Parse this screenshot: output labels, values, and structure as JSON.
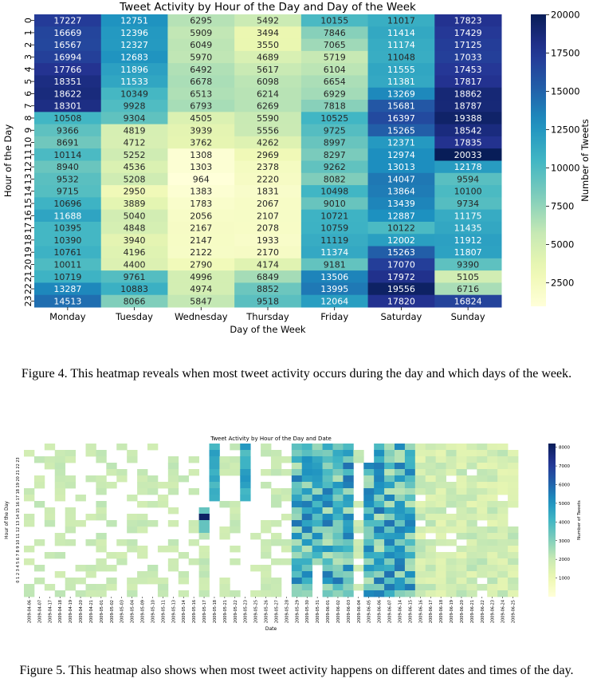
{
  "chart_data": [
    {
      "type": "heatmap",
      "title": "Tweet Activity by Hour of the Day and Day of the Week",
      "xlabel": "Day of the Week",
      "ylabel": "Hour of the Day",
      "colorbar_label": "Number of Tweets",
      "colormap": "YlGnBu",
      "colorbar_ticks": [
        2500,
        5000,
        7500,
        10000,
        12500,
        15000,
        17500,
        20000
      ],
      "vmin": 964,
      "vmax": 20033,
      "x": [
        "Monday",
        "Tuesday",
        "Wednesday",
        "Thursday",
        "Friday",
        "Saturday",
        "Sunday"
      ],
      "y": [
        "0",
        "1",
        "2",
        "3",
        "4",
        "5",
        "6",
        "7",
        "8",
        "9",
        "10",
        "11",
        "12",
        "13",
        "14",
        "15",
        "16",
        "17",
        "18",
        "19",
        "20",
        "21",
        "22",
        "23"
      ],
      "values": [
        [
          17227,
          12751,
          6295,
          5492,
          10155,
          11017,
          17823
        ],
        [
          16669,
          12396,
          5909,
          3494,
          7846,
          11414,
          17429
        ],
        [
          16567,
          12327,
          6049,
          3550,
          7065,
          11174,
          17125
        ],
        [
          16994,
          12683,
          5970,
          4689,
          5719,
          11048,
          17033
        ],
        [
          17766,
          11896,
          6492,
          5617,
          6104,
          11555,
          17453
        ],
        [
          18351,
          11533,
          6678,
          6098,
          6654,
          11381,
          17817
        ],
        [
          18622,
          10349,
          6513,
          6214,
          6929,
          13269,
          18862
        ],
        [
          18301,
          9928,
          6793,
          6269,
          7818,
          15681,
          18787
        ],
        [
          10508,
          9304,
          4505,
          5590,
          10525,
          16397,
          19388
        ],
        [
          9366,
          4819,
          3939,
          5556,
          9725,
          15265,
          18542
        ],
        [
          8691,
          4712,
          3762,
          4262,
          8997,
          12371,
          17835
        ],
        [
          10114,
          5252,
          1308,
          2969,
          8297,
          12974,
          20033
        ],
        [
          8940,
          4536,
          1303,
          2378,
          9262,
          13013,
          12178
        ],
        [
          9532,
          5208,
          964,
          2220,
          8082,
          14047,
          9594
        ],
        [
          9715,
          2950,
          1383,
          1831,
          10498,
          13864,
          10100
        ],
        [
          10696,
          3889,
          1783,
          2067,
          9010,
          13439,
          9734
        ],
        [
          11688,
          5040,
          2056,
          2107,
          10721,
          12887,
          11175
        ],
        [
          10395,
          4848,
          2167,
          2078,
          10759,
          10122,
          11435
        ],
        [
          10390,
          3940,
          2147,
          1933,
          11119,
          12002,
          11912
        ],
        [
          10761,
          4196,
          2122,
          2170,
          11374,
          15263,
          11807
        ],
        [
          10011,
          4400,
          2790,
          4174,
          9181,
          17070,
          9390
        ],
        [
          10719,
          9761,
          4996,
          6849,
          13506,
          17972,
          5105
        ],
        [
          13287,
          10883,
          4974,
          8852,
          13995,
          19556,
          6716
        ],
        [
          14513,
          8066,
          5847,
          9518,
          12064,
          17820,
          16824
        ]
      ]
    },
    {
      "type": "heatmap",
      "title": "Tweet Activity by Hour of the Day and Date",
      "xlabel": "Date",
      "ylabel": "Hour of the Day",
      "colorbar_label": "Number of Tweets",
      "colormap": "YlGnBu",
      "colorbar_ticks": [
        1000,
        2000,
        3000,
        4000,
        5000,
        6000,
        7000,
        8000
      ],
      "vmin": 0,
      "vmax": 8200,
      "x": [
        "2009-04-06",
        "2009-04-07",
        "2009-04-17",
        "2009-04-18",
        "2009-04-19",
        "2009-04-20",
        "2009-04-21",
        "2009-05-01",
        "2009-05-02",
        "2009-05-03",
        "2009-05-04",
        "2009-05-09",
        "2009-05-10",
        "2009-05-11",
        "2009-05-13",
        "2009-05-14",
        "2009-05-16",
        "2009-05-17",
        "2009-05-18",
        "2009-05-21",
        "2009-05-22",
        "2009-05-23",
        "2009-05-25",
        "2009-05-26",
        "2009-05-27",
        "2009-05-28",
        "2009-05-29",
        "2009-05-30",
        "2009-05-31",
        "2009-06-01",
        "2009-06-02",
        "2009-06-03",
        "2009-06-04",
        "2009-06-05",
        "2009-06-06",
        "2009-06-07",
        "2009-06-14",
        "2009-06-15",
        "2009-06-16",
        "2009-06-17",
        "2009-06-18",
        "2009-06-19",
        "2009-06-20",
        "2009-06-21",
        "2009-06-22",
        "2009-06-23",
        "2009-06-24",
        "2009-06-25"
      ],
      "y_tick_labels": "0 1 2 3 4 5 6 7 8 9 10 11 12 13 14 15 16 17 18 19 20 21 22 23",
      "rows": 24,
      "cells": "approximate; see script-generated pattern"
    }
  ],
  "figure4": {
    "caption": "Figure 4. This heatmap reveals when most tweet activity occurs during the day and which days of the week."
  },
  "figure5": {
    "caption": "Figure 5. This heatmap also shows when most tweet activity happens on different dates and times of the day."
  }
}
